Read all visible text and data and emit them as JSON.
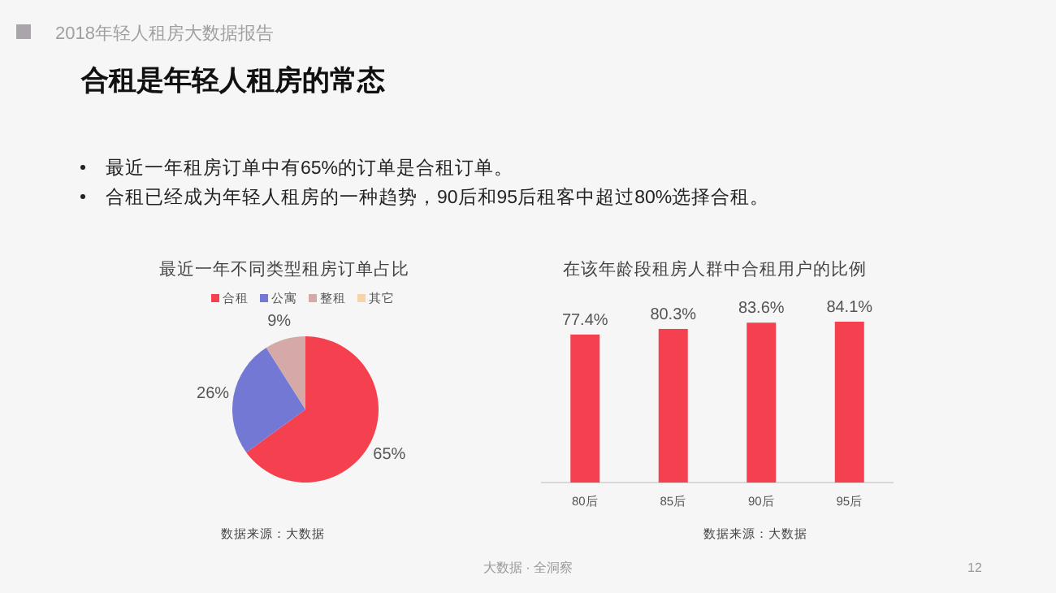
{
  "chart_data": [
    {
      "type": "other",
      "subtitle": "2018年轻人租房大数据报告",
      "title": "合租是年轻人租房的常态",
      "annotations": [
        "最近一年租房订单中有65%的订单是合租订单。",
        "合租已经成为年轻人租房的一种趋势，90后和95后租客中超过80%选择合租。",
        "大数据 · 全洞察",
        "12"
      ]
    },
    {
      "type": "pie",
      "title": "最近一年不同类型租房订单占比",
      "categories": [
        "合租",
        "公寓",
        "整租",
        "其它"
      ],
      "values": [
        65,
        26,
        9,
        0
      ],
      "colors": [
        "#f5414f",
        "#7278d3",
        "#d4a9a8",
        "#f7d3a8"
      ],
      "value_labels": [
        "65%",
        "26%",
        "9%",
        null
      ],
      "legend": "top",
      "annotations": [
        "数据来源：大数据"
      ]
    },
    {
      "type": "bar",
      "title": "在该年龄段租房人群中合租用户的比例",
      "categories": [
        "80后",
        "85后",
        "90后",
        "95后"
      ],
      "values": [
        77.4,
        80.3,
        83.6,
        84.1
      ],
      "color": "#f5414f",
      "value_labels": [
        "77.4%",
        "80.3%",
        "83.6%",
        "84.1%"
      ],
      "annotations": [
        "数据来源：大数据"
      ]
    }
  ]
}
